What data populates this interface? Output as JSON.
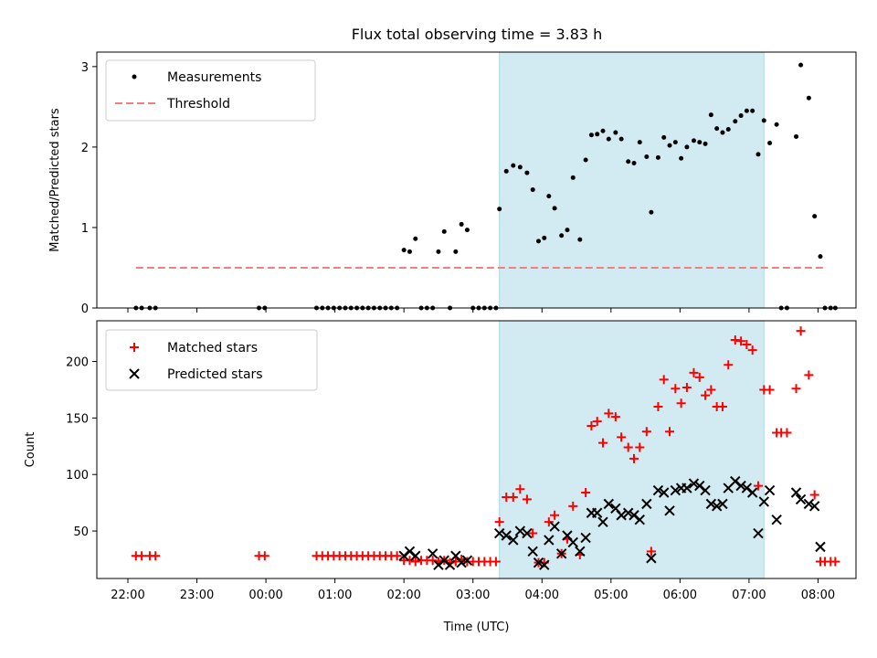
{
  "title": "Flux total observing time = 3.83 h",
  "colors": {
    "span": "#add8e6",
    "threshold": "#f08080",
    "matched": "#ff0000",
    "predicted": "#000000",
    "measurement": "#000000"
  },
  "chart_data": [
    {
      "type": "scatter",
      "title": "Flux total observing time = 3.83 h",
      "ylabel": "Matched/Predicted stars",
      "xlabel": "",
      "ylim": [
        0,
        3.18
      ],
      "yticks": [
        0,
        1,
        2,
        3
      ],
      "legend": {
        "placement": "top-left",
        "entries": [
          {
            "label": "Measurements",
            "marker": "dot"
          },
          {
            "label": "Threshold",
            "marker": "dashed-line"
          }
        ]
      },
      "shaded_span": [
        "03:23",
        "07:13"
      ],
      "threshold": {
        "name": "Threshold",
        "value": 0.5,
        "x_range": [
          "22:07",
          "08:07"
        ]
      },
      "series": [
        {
          "name": "Measurements",
          "points": [
            [
              "22:07",
              0
            ],
            [
              "22:12",
              0
            ],
            [
              "22:19",
              0
            ],
            [
              "22:24",
              0
            ],
            [
              "23:54",
              0
            ],
            [
              "23:59",
              0
            ],
            [
              "00:44",
              0
            ],
            [
              "00:49",
              0
            ],
            [
              "00:54",
              0
            ],
            [
              "00:59",
              0
            ],
            [
              "01:04",
              0
            ],
            [
              "01:09",
              0
            ],
            [
              "01:14",
              0
            ],
            [
              "01:19",
              0
            ],
            [
              "01:24",
              0
            ],
            [
              "01:29",
              0
            ],
            [
              "01:34",
              0
            ],
            [
              "01:39",
              0
            ],
            [
              "01:44",
              0
            ],
            [
              "01:49",
              0
            ],
            [
              "01:54",
              0
            ],
            [
              "02:00",
              0.72
            ],
            [
              "02:05",
              0.7
            ],
            [
              "02:10",
              0.86
            ],
            [
              "02:15",
              0
            ],
            [
              "02:20",
              0
            ],
            [
              "02:25",
              0
            ],
            [
              "02:30",
              0.7
            ],
            [
              "02:35",
              0.95
            ],
            [
              "02:40",
              0
            ],
            [
              "02:45",
              0.7
            ],
            [
              "02:50",
              1.04
            ],
            [
              "02:55",
              0.97
            ],
            [
              "03:00",
              0
            ],
            [
              "03:05",
              0
            ],
            [
              "03:10",
              0
            ],
            [
              "03:15",
              0
            ],
            [
              "03:20",
              0
            ],
            [
              "03:23",
              1.23
            ],
            [
              "03:29",
              1.7
            ],
            [
              "03:35",
              1.77
            ],
            [
              "03:41",
              1.75
            ],
            [
              "03:47",
              1.68
            ],
            [
              "03:52",
              1.47
            ],
            [
              "03:57",
              0.83
            ],
            [
              "04:02",
              0.87
            ],
            [
              "04:06",
              1.39
            ],
            [
              "04:11",
              1.24
            ],
            [
              "04:17",
              0.9
            ],
            [
              "04:22",
              0.97
            ],
            [
              "04:27",
              1.62
            ],
            [
              "04:33",
              0.85
            ],
            [
              "04:38",
              1.84
            ],
            [
              "04:43",
              2.15
            ],
            [
              "04:48",
              2.16
            ],
            [
              "04:53",
              2.2
            ],
            [
              "04:58",
              2.1
            ],
            [
              "05:04",
              2.18
            ],
            [
              "05:09",
              2.1
            ],
            [
              "05:15",
              1.82
            ],
            [
              "05:20",
              1.8
            ],
            [
              "05:25",
              2.06
            ],
            [
              "05:31",
              1.88
            ],
            [
              "05:35",
              1.19
            ],
            [
              "05:41",
              1.87
            ],
            [
              "05:46",
              2.12
            ],
            [
              "05:51",
              2.02
            ],
            [
              "05:56",
              2.06
            ],
            [
              "06:01",
              1.86
            ],
            [
              "06:06",
              2.0
            ],
            [
              "06:12",
              2.08
            ],
            [
              "06:17",
              2.06
            ],
            [
              "06:22",
              2.04
            ],
            [
              "06:27",
              2.4
            ],
            [
              "06:32",
              2.23
            ],
            [
              "06:37",
              2.18
            ],
            [
              "06:42",
              2.22
            ],
            [
              "06:48",
              2.32
            ],
            [
              "06:53",
              2.39
            ],
            [
              "06:58",
              2.45
            ],
            [
              "07:03",
              2.45
            ],
            [
              "07:08",
              1.91
            ],
            [
              "07:13",
              2.33
            ],
            [
              "07:18",
              2.05
            ],
            [
              "07:24",
              2.28
            ],
            [
              "07:28",
              0
            ],
            [
              "07:33",
              0
            ],
            [
              "07:41",
              2.13
            ],
            [
              "07:45",
              3.02
            ],
            [
              "07:52",
              2.61
            ],
            [
              "07:57",
              1.14
            ],
            [
              "08:02",
              0.64
            ],
            [
              "08:06",
              0
            ],
            [
              "08:11",
              0
            ],
            [
              "08:15",
              0
            ]
          ]
        }
      ]
    },
    {
      "type": "scatter",
      "title": "",
      "ylabel": "Count",
      "xlabel": "Time (UTC)",
      "ylim": [
        8,
        236
      ],
      "yticks": [
        50,
        100,
        150,
        200
      ],
      "xticks": [
        "22:00",
        "23:00",
        "00:00",
        "01:00",
        "02:00",
        "03:00",
        "04:00",
        "05:00",
        "06:00",
        "07:00",
        "08:00"
      ],
      "legend": {
        "placement": "top-left",
        "entries": [
          {
            "label": "Matched stars",
            "marker": "plus"
          },
          {
            "label": "Predicted stars",
            "marker": "x"
          }
        ]
      },
      "shaded_span": [
        "03:23",
        "07:13"
      ],
      "series": [
        {
          "name": "Matched stars",
          "points": [
            [
              "22:07",
              28
            ],
            [
              "22:12",
              28
            ],
            [
              "22:19",
              28
            ],
            [
              "22:24",
              28
            ],
            [
              "23:54",
              28
            ],
            [
              "23:59",
              28
            ],
            [
              "00:44",
              28
            ],
            [
              "00:49",
              28
            ],
            [
              "00:54",
              28
            ],
            [
              "00:59",
              28
            ],
            [
              "01:04",
              28
            ],
            [
              "01:09",
              28
            ],
            [
              "01:14",
              28
            ],
            [
              "01:19",
              28
            ],
            [
              "01:24",
              28
            ],
            [
              "01:29",
              28
            ],
            [
              "01:34",
              28
            ],
            [
              "01:39",
              28
            ],
            [
              "01:44",
              28
            ],
            [
              "01:49",
              28
            ],
            [
              "01:54",
              28
            ],
            [
              "02:00",
              24
            ],
            [
              "02:05",
              24
            ],
            [
              "02:10",
              23
            ],
            [
              "02:15",
              24
            ],
            [
              "02:20",
              24
            ],
            [
              "02:25",
              24
            ],
            [
              "02:30",
              23
            ],
            [
              "02:35",
              24
            ],
            [
              "02:40",
              22
            ],
            [
              "02:45",
              23
            ],
            [
              "02:50",
              25
            ],
            [
              "02:55",
              23
            ],
            [
              "03:00",
              23
            ],
            [
              "03:05",
              23
            ],
            [
              "03:10",
              23
            ],
            [
              "03:15",
              23
            ],
            [
              "03:20",
              23
            ],
            [
              "03:23",
              58
            ],
            [
              "03:29",
              80
            ],
            [
              "03:35",
              80
            ],
            [
              "03:41",
              87
            ],
            [
              "03:47",
              78
            ],
            [
              "03:52",
              48
            ],
            [
              "03:57",
              22
            ],
            [
              "04:02",
              22
            ],
            [
              "04:06",
              58
            ],
            [
              "04:11",
              64
            ],
            [
              "04:17",
              30
            ],
            [
              "04:22",
              43
            ],
            [
              "04:27",
              72
            ],
            [
              "04:33",
              29
            ],
            [
              "04:38",
              84
            ],
            [
              "04:43",
              143
            ],
            [
              "04:48",
              147
            ],
            [
              "04:53",
              128
            ],
            [
              "04:58",
              154
            ],
            [
              "05:04",
              151
            ],
            [
              "05:09",
              133
            ],
            [
              "05:15",
              124
            ],
            [
              "05:20",
              114
            ],
            [
              "05:25",
              124
            ],
            [
              "05:31",
              138
            ],
            [
              "05:35",
              32
            ],
            [
              "05:41",
              160
            ],
            [
              "05:46",
              184
            ],
            [
              "05:51",
              138
            ],
            [
              "05:56",
              176
            ],
            [
              "06:01",
              163
            ],
            [
              "06:06",
              177
            ],
            [
              "06:12",
              190
            ],
            [
              "06:17",
              186
            ],
            [
              "06:22",
              170
            ],
            [
              "06:27",
              175
            ],
            [
              "06:32",
              160
            ],
            [
              "06:37",
              160
            ],
            [
              "06:42",
              197
            ],
            [
              "06:48",
              219
            ],
            [
              "06:53",
              218
            ],
            [
              "06:58",
              215
            ],
            [
              "07:03",
              210
            ],
            [
              "07:08",
              90
            ],
            [
              "07:13",
              175
            ],
            [
              "07:18",
              175
            ],
            [
              "07:24",
              137
            ],
            [
              "07:28",
              137
            ],
            [
              "07:33",
              137
            ],
            [
              "07:41",
              176
            ],
            [
              "07:45",
              227
            ],
            [
              "07:52",
              188
            ],
            [
              "07:57",
              82
            ],
            [
              "08:02",
              23
            ],
            [
              "08:06",
              23
            ],
            [
              "08:11",
              23
            ],
            [
              "08:15",
              23
            ]
          ]
        },
        {
          "name": "Predicted stars",
          "points": [
            [
              "02:00",
              28
            ],
            [
              "02:05",
              32
            ],
            [
              "02:10",
              28
            ],
            [
              "02:25",
              30
            ],
            [
              "02:30",
              20
            ],
            [
              "02:35",
              24
            ],
            [
              "02:40",
              20
            ],
            [
              "02:45",
              28
            ],
            [
              "02:50",
              22
            ],
            [
              "02:55",
              24
            ],
            [
              "03:23",
              48
            ],
            [
              "03:29",
              46
            ],
            [
              "03:35",
              42
            ],
            [
              "03:41",
              50
            ],
            [
              "03:47",
              48
            ],
            [
              "03:52",
              32
            ],
            [
              "03:57",
              22
            ],
            [
              "04:02",
              20
            ],
            [
              "04:06",
              42
            ],
            [
              "04:11",
              54
            ],
            [
              "04:17",
              30
            ],
            [
              "04:22",
              46
            ],
            [
              "04:27",
              40
            ],
            [
              "04:33",
              32
            ],
            [
              "04:38",
              44
            ],
            [
              "04:43",
              66
            ],
            [
              "04:48",
              66
            ],
            [
              "04:53",
              58
            ],
            [
              "04:58",
              74
            ],
            [
              "05:04",
              70
            ],
            [
              "05:09",
              64
            ],
            [
              "05:15",
              66
            ],
            [
              "05:20",
              64
            ],
            [
              "05:25",
              60
            ],
            [
              "05:31",
              74
            ],
            [
              "05:35",
              26
            ],
            [
              "05:41",
              86
            ],
            [
              "05:46",
              84
            ],
            [
              "05:51",
              68
            ],
            [
              "05:56",
              86
            ],
            [
              "06:01",
              88
            ],
            [
              "06:06",
              88
            ],
            [
              "06:12",
              92
            ],
            [
              "06:17",
              90
            ],
            [
              "06:22",
              86
            ],
            [
              "06:27",
              74
            ],
            [
              "06:32",
              72
            ],
            [
              "06:37",
              74
            ],
            [
              "06:42",
              88
            ],
            [
              "06:48",
              94
            ],
            [
              "06:53",
              90
            ],
            [
              "06:58",
              88
            ],
            [
              "07:03",
              84
            ],
            [
              "07:08",
              48
            ],
            [
              "07:13",
              76
            ],
            [
              "07:18",
              86
            ],
            [
              "07:24",
              60
            ],
            [
              "07:41",
              84
            ],
            [
              "07:45",
              78
            ],
            [
              "07:52",
              74
            ],
            [
              "07:57",
              72
            ],
            [
              "08:02",
              36
            ]
          ]
        }
      ]
    }
  ]
}
